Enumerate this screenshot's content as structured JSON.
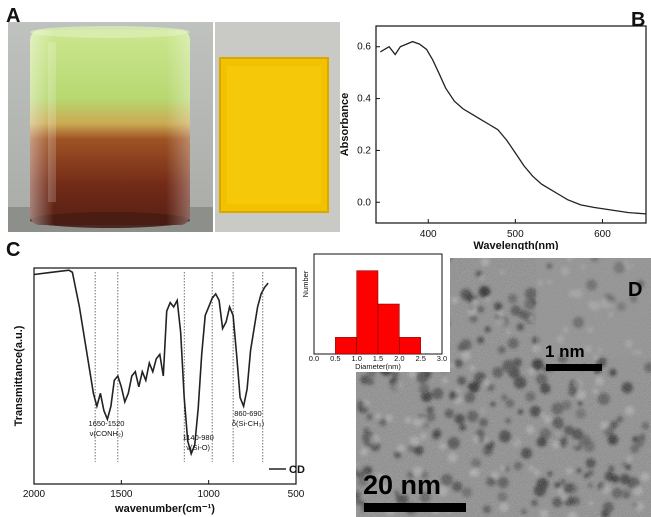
{
  "figure": {
    "panels": {
      "a": {
        "letter": "A"
      },
      "b": {
        "letter": "B"
      },
      "c": {
        "letter": "C"
      },
      "d": {
        "letter": "D"
      }
    },
    "tem": {
      "scale_large": "20 nm",
      "scale_small": "1 nm"
    }
  },
  "colors": {
    "film": "#f5c300",
    "hist_bar": "#ff0000",
    "line": "#222222"
  },
  "chart_data": [
    {
      "panel": "B",
      "type": "line",
      "title": "",
      "xlabel": "Wavelength(nm)",
      "ylabel": "Absorbance",
      "xlim": [
        340,
        650
      ],
      "ylim": [
        -0.08,
        0.68
      ],
      "xticks": [
        400,
        500,
        600
      ],
      "yticks": [
        0.0,
        0.2,
        0.4,
        0.6
      ],
      "x": [
        345,
        355,
        362,
        368,
        375,
        382,
        390,
        398,
        405,
        412,
        420,
        430,
        440,
        450,
        460,
        470,
        480,
        490,
        500,
        510,
        520,
        530,
        540,
        550,
        560,
        575,
        590,
        610,
        630,
        650
      ],
      "y": [
        0.58,
        0.6,
        0.57,
        0.6,
        0.61,
        0.62,
        0.61,
        0.59,
        0.55,
        0.5,
        0.44,
        0.39,
        0.36,
        0.34,
        0.32,
        0.3,
        0.28,
        0.24,
        0.19,
        0.14,
        0.1,
        0.07,
        0.05,
        0.03,
        0.01,
        -0.01,
        -0.02,
        -0.03,
        -0.04,
        -0.045
      ]
    },
    {
      "panel": "C",
      "type": "line",
      "title": "",
      "xlabel": "wavenumber(cm⁻¹)",
      "ylabel": "Transmittance(a.u.)",
      "xlim": [
        2000,
        500
      ],
      "ylim": [
        0,
        1
      ],
      "xticks": [
        2000,
        1500,
        1000,
        500
      ],
      "legend": [
        "CD"
      ],
      "x": [
        2000,
        1900,
        1800,
        1780,
        1760,
        1740,
        1720,
        1700,
        1680,
        1660,
        1640,
        1620,
        1600,
        1580,
        1560,
        1540,
        1520,
        1500,
        1480,
        1460,
        1440,
        1420,
        1400,
        1380,
        1360,
        1340,
        1320,
        1300,
        1280,
        1260,
        1240,
        1220,
        1200,
        1180,
        1160,
        1140,
        1120,
        1100,
        1080,
        1060,
        1040,
        1020,
        1000,
        980,
        960,
        940,
        920,
        900,
        880,
        860,
        840,
        820,
        800,
        780,
        760,
        740,
        720,
        700,
        680,
        660
      ],
      "y": [
        0.97,
        0.98,
        0.99,
        0.98,
        0.9,
        0.82,
        0.72,
        0.62,
        0.52,
        0.42,
        0.36,
        0.42,
        0.34,
        0.3,
        0.36,
        0.48,
        0.5,
        0.45,
        0.38,
        0.42,
        0.5,
        0.52,
        0.45,
        0.52,
        0.48,
        0.56,
        0.52,
        0.58,
        0.6,
        0.5,
        0.8,
        0.84,
        0.82,
        0.85,
        0.7,
        0.4,
        0.2,
        0.14,
        0.18,
        0.35,
        0.6,
        0.78,
        0.82,
        0.86,
        0.88,
        0.85,
        0.72,
        0.75,
        0.82,
        0.78,
        0.6,
        0.4,
        0.36,
        0.44,
        0.62,
        0.72,
        0.82,
        0.88,
        0.91,
        0.93
      ]
    },
    {
      "panel": "C-inset",
      "type": "bar",
      "title": "",
      "xlabel": "Diameter(nm)",
      "ylabel": "Number",
      "xlim": [
        0.0,
        3.0
      ],
      "xticks": [
        "0.0",
        "0.5",
        "1.0",
        "1.5",
        "2.0",
        "2.5",
        "3.0"
      ],
      "bins": [
        [
          0.5,
          1.0
        ],
        [
          1.0,
          1.5
        ],
        [
          1.5,
          2.0
        ],
        [
          2.0,
          2.5
        ]
      ],
      "values": [
        10,
        50,
        30,
        10
      ],
      "ylim": [
        0,
        60
      ]
    }
  ],
  "annotations_c": [
    {
      "text": "1650-1520",
      "sub": "ν(CONH₂)"
    },
    {
      "text": "1140-980",
      "sub": "ν(Si-O)"
    },
    {
      "text": "860-690",
      "sub": "δ(Si-CH₃)"
    }
  ]
}
